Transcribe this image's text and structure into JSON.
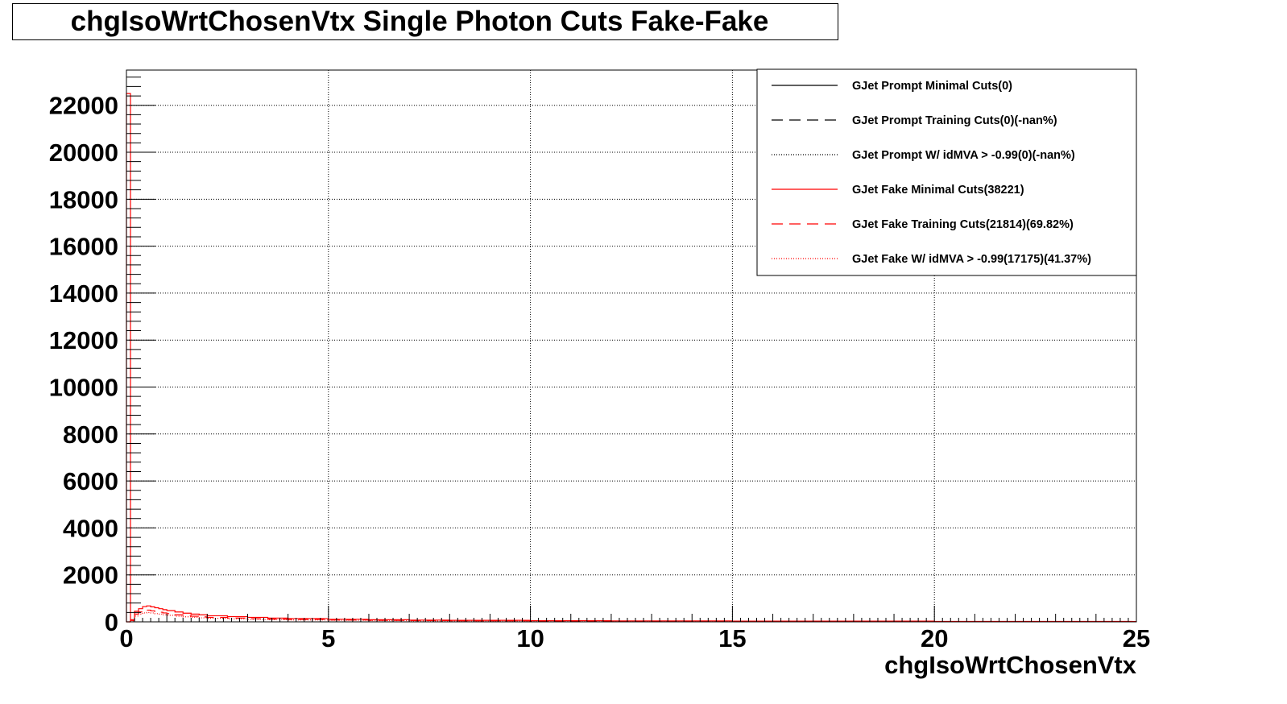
{
  "chart_data": {
    "type": "line",
    "title": "chgIsoWrtChosenVtx Single Photon Cuts Fake-Fake",
    "xlabel": "chgIsoWrtChosenVtx",
    "ylabel": "",
    "xlim": [
      0,
      25
    ],
    "ylim": [
      0,
      23500
    ],
    "x_ticks": [
      "0",
      "5",
      "10",
      "15",
      "20",
      "25"
    ],
    "y_ticks": [
      "0",
      "2000",
      "4000",
      "6000",
      "8000",
      "10000",
      "12000",
      "14000",
      "16000",
      "18000",
      "20000",
      "22000"
    ],
    "grid": true,
    "legend_position": "top-right",
    "series": [
      {
        "name": "GJet Prompt Minimal Cuts(0)",
        "color": "#000000",
        "style": "solid",
        "x": [],
        "values": []
      },
      {
        "name": "GJet Prompt Training Cuts(0)(-nan%)",
        "color": "#000000",
        "style": "dashed",
        "x": [],
        "values": []
      },
      {
        "name": "GJet Prompt W/ idMVA > -0.99(0)(-nan%)",
        "color": "#000000",
        "style": "dotted",
        "x": [],
        "values": []
      },
      {
        "name": "GJet Fake Minimal Cuts(38221)",
        "color": "#ff0000",
        "style": "solid",
        "x": [
          0.0,
          0.1,
          0.2,
          0.3,
          0.4,
          0.5,
          0.6,
          0.7,
          0.8,
          0.9,
          1.0,
          1.2,
          1.4,
          1.6,
          1.8,
          2.0,
          2.5,
          3.0,
          3.5,
          4.0,
          5.0,
          6.0,
          7.0,
          8.0,
          10.0,
          12.0,
          15.0,
          20.0,
          24.9
        ],
        "values": [
          22500,
          90,
          450,
          560,
          650,
          680,
          640,
          600,
          560,
          520,
          480,
          420,
          370,
          330,
          300,
          260,
          220,
          190,
          160,
          140,
          110,
          90,
          75,
          65,
          50,
          40,
          30,
          20,
          15
        ]
      },
      {
        "name": "GJet Fake Training Cuts(21814)(69.82%)",
        "color": "#ff0000",
        "style": "dashed",
        "x": [
          0.0,
          0.1,
          0.2,
          0.3,
          0.4,
          0.5,
          0.6,
          0.7,
          0.8,
          0.9,
          1.0,
          1.2,
          1.4,
          1.6,
          1.8,
          2.0,
          2.5,
          3.0,
          3.5,
          4.0,
          5.0,
          6.0,
          7.0,
          8.0,
          10.0,
          12.0,
          15.0,
          20.0,
          24.9
        ],
        "values": [
          0,
          60,
          330,
          420,
          480,
          500,
          470,
          440,
          410,
          380,
          350,
          300,
          270,
          240,
          210,
          190,
          160,
          135,
          115,
          100,
          80,
          65,
          55,
          45,
          35,
          28,
          20,
          14,
          10
        ]
      },
      {
        "name": "GJet Fake W/ idMVA > -0.99(17175)(41.37%)",
        "color": "#ff0000",
        "style": "dotted",
        "x": [
          0.0,
          0.1,
          0.2,
          0.3,
          0.4,
          0.5,
          0.6,
          0.7,
          0.8,
          0.9,
          1.0,
          1.2,
          1.4,
          1.6,
          1.8,
          2.0,
          2.5,
          3.0,
          3.5,
          4.0,
          5.0,
          6.0,
          7.0,
          8.0,
          10.0,
          12.0,
          15.0,
          20.0,
          24.9
        ],
        "values": [
          0,
          40,
          250,
          330,
          380,
          400,
          380,
          350,
          330,
          300,
          280,
          240,
          215,
          190,
          170,
          150,
          125,
          105,
          90,
          80,
          65,
          52,
          44,
          36,
          28,
          22,
          16,
          11,
          8
        ]
      }
    ]
  }
}
